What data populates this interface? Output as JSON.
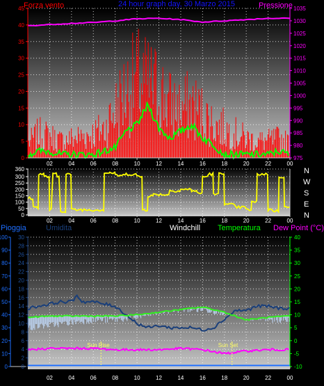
{
  "header": {
    "left_label": "Forza vento",
    "title": "24 hour graph day, 30 Marzo 2015",
    "right_label": "Pressione"
  },
  "bottom_header": {
    "rain": "Pioggia",
    "humidity": "Umidita",
    "windchill": "Windchill",
    "temperature": "Temperatura",
    "dewpoint": "Dew Point (°C)"
  },
  "compass": [
    "N",
    "W",
    "S",
    "E",
    "N"
  ],
  "sun": {
    "rise_label": "Sun Rise",
    "set_label": "Sun Set",
    "rise_hour": 6.7,
    "set_hour": 18.7
  },
  "x_ticks": [
    "02",
    "04",
    "06",
    "08",
    "10",
    "12",
    "14",
    "16",
    "18",
    "20",
    "22",
    "00"
  ],
  "colors": {
    "wind": "#ff0000",
    "gust_avg": "#00ff00",
    "pressure": "#ff00ff",
    "direction": "#ffff00",
    "humidity": "#1a3f7a",
    "windchill": "#b8cde8",
    "temperature": "#33ee22",
    "dewpoint": "#ff00ff",
    "rain": "#1e6fff",
    "sun": "#ffff66"
  },
  "chart_data": [
    {
      "type": "area",
      "panel": "wind",
      "ylim_left": [
        0,
        45
      ],
      "yticks_left": [
        0,
        5,
        10,
        15,
        20,
        25,
        30,
        35,
        40,
        45
      ],
      "ylim_right": [
        975,
        1035
      ],
      "yticks_right": [
        975,
        980,
        985,
        990,
        995,
        1000,
        1005,
        1010,
        1015,
        1020,
        1025,
        1030,
        1035
      ],
      "xlim_hours": [
        0,
        24
      ],
      "series": [
        {
          "name": "Forza vento",
          "x": [
            0,
            1,
            2,
            3,
            4,
            5,
            6,
            7,
            8,
            9,
            10,
            11,
            12,
            13,
            14,
            15,
            16,
            17,
            18,
            19,
            20,
            21,
            22,
            23,
            24
          ],
          "values": [
            6,
            10,
            9,
            7,
            8,
            9,
            10,
            12,
            20,
            28,
            32,
            30,
            28,
            22,
            20,
            22,
            18,
            14,
            12,
            10,
            8,
            7,
            7,
            8,
            6
          ]
        },
        {
          "name": "",
          "x": [
            0,
            1,
            2,
            3,
            4,
            5,
            6,
            7,
            8,
            9,
            10,
            11,
            12,
            13,
            14,
            15,
            16,
            17,
            18,
            19,
            20,
            21,
            22,
            23,
            24
          ],
          "values": [
            1,
            2,
            2,
            1,
            1,
            1,
            1,
            2,
            3,
            8,
            10,
            16,
            9,
            6,
            8,
            10,
            6,
            4,
            1,
            1,
            1,
            1,
            1,
            2,
            1
          ]
        },
        {
          "name": "Pressione",
          "x": [
            0,
            2,
            4,
            6,
            8,
            10,
            12,
            14,
            16,
            18,
            20,
            22,
            24
          ],
          "values": [
            1028,
            1028.5,
            1029,
            1029.3,
            1030,
            1030.8,
            1031,
            1030.5,
            1029.5,
            1030,
            1030.5,
            1031,
            1031
          ]
        }
      ]
    },
    {
      "type": "line",
      "panel": "direction",
      "ylim": [
        0,
        360
      ],
      "yticks": [
        0,
        50,
        100,
        150,
        200,
        250,
        300,
        360
      ],
      "xlim_hours": [
        0,
        24
      ],
      "series": [
        {
          "name": "",
          "x": [
            0,
            0.5,
            1,
            1.5,
            2,
            2.3,
            2.7,
            3,
            3.5,
            4,
            5,
            6,
            6.5,
            7,
            7.5,
            8,
            9,
            10,
            10.5,
            11,
            11.5,
            12,
            13,
            14,
            14.5,
            15,
            15.5,
            16,
            16.5,
            17,
            17.5,
            18,
            19,
            20,
            20.5,
            21,
            21.5,
            22,
            22.5,
            23,
            23.5,
            24
          ],
          "values": [
            130,
            60,
            320,
            300,
            40,
            320,
            300,
            30,
            320,
            40,
            40,
            40,
            40,
            330,
            330,
            310,
            320,
            300,
            40,
            150,
            160,
            160,
            190,
            200,
            200,
            190,
            170,
            300,
            320,
            160,
            330,
            80,
            60,
            40,
            100,
            320,
            320,
            40,
            30,
            300,
            60,
            20
          ]
        }
      ]
    },
    {
      "type": "line",
      "panel": "climate",
      "ylim_rain": [
        0,
        100
      ],
      "yticks_rain": [
        0,
        10,
        20,
        30,
        40,
        50,
        60,
        70,
        80,
        90,
        100
      ],
      "ylim_hum": [
        0,
        30
      ],
      "yticks_hum": [
        0,
        2,
        4,
        6,
        8,
        10,
        12,
        14,
        16,
        18,
        20,
        22,
        24,
        26,
        28,
        30
      ],
      "ylim_temp": [
        -10,
        40
      ],
      "yticks_temp": [
        -10,
        -5,
        0,
        5,
        10,
        15,
        20,
        25,
        30,
        35,
        40
      ],
      "xlim_hours": [
        0,
        24
      ],
      "series": [
        {
          "name": "Umidita",
          "x": [
            0,
            1,
            2,
            3,
            4,
            4.5,
            5,
            6,
            7,
            8,
            9,
            10,
            11,
            12,
            13,
            14,
            15,
            16,
            17,
            18,
            19,
            20,
            21,
            22,
            23,
            24
          ],
          "values": [
            13.5,
            14,
            14.5,
            15,
            15,
            16.5,
            15,
            15,
            14.5,
            14,
            12,
            10,
            9,
            9.5,
            9,
            9,
            9,
            8.5,
            9,
            11,
            13,
            13,
            14,
            14,
            13.5,
            13.5
          ]
        },
        {
          "name": "Windchill",
          "x": [
            0,
            2,
            4,
            6,
            8,
            10,
            12,
            14,
            16,
            18,
            20,
            22,
            24
          ],
          "values": [
            5,
            6,
            7,
            8,
            8,
            9,
            11,
            12,
            12,
            11,
            9,
            8,
            8
          ]
        },
        {
          "name": "Temperatura",
          "x": [
            0,
            2,
            4,
            6,
            8,
            10,
            12,
            14,
            16,
            18,
            20,
            22,
            24
          ],
          "values": [
            9,
            9.5,
            9.5,
            9.5,
            9.5,
            10,
            11,
            12,
            13,
            11,
            8,
            9,
            9.5
          ]
        },
        {
          "name": "Dew Point (°C)",
          "x": [
            0,
            2,
            4,
            6,
            8,
            10,
            12,
            14,
            16,
            18,
            20,
            22,
            24
          ],
          "values": [
            -3.5,
            -3,
            -3,
            -3,
            -3.5,
            -3.5,
            -3.5,
            -3,
            -3.5,
            -5,
            -4,
            -3.5,
            -3.5
          ]
        },
        {
          "name": "Pioggia",
          "x": [
            0,
            24
          ],
          "values": [
            0,
            0
          ]
        }
      ]
    }
  ]
}
